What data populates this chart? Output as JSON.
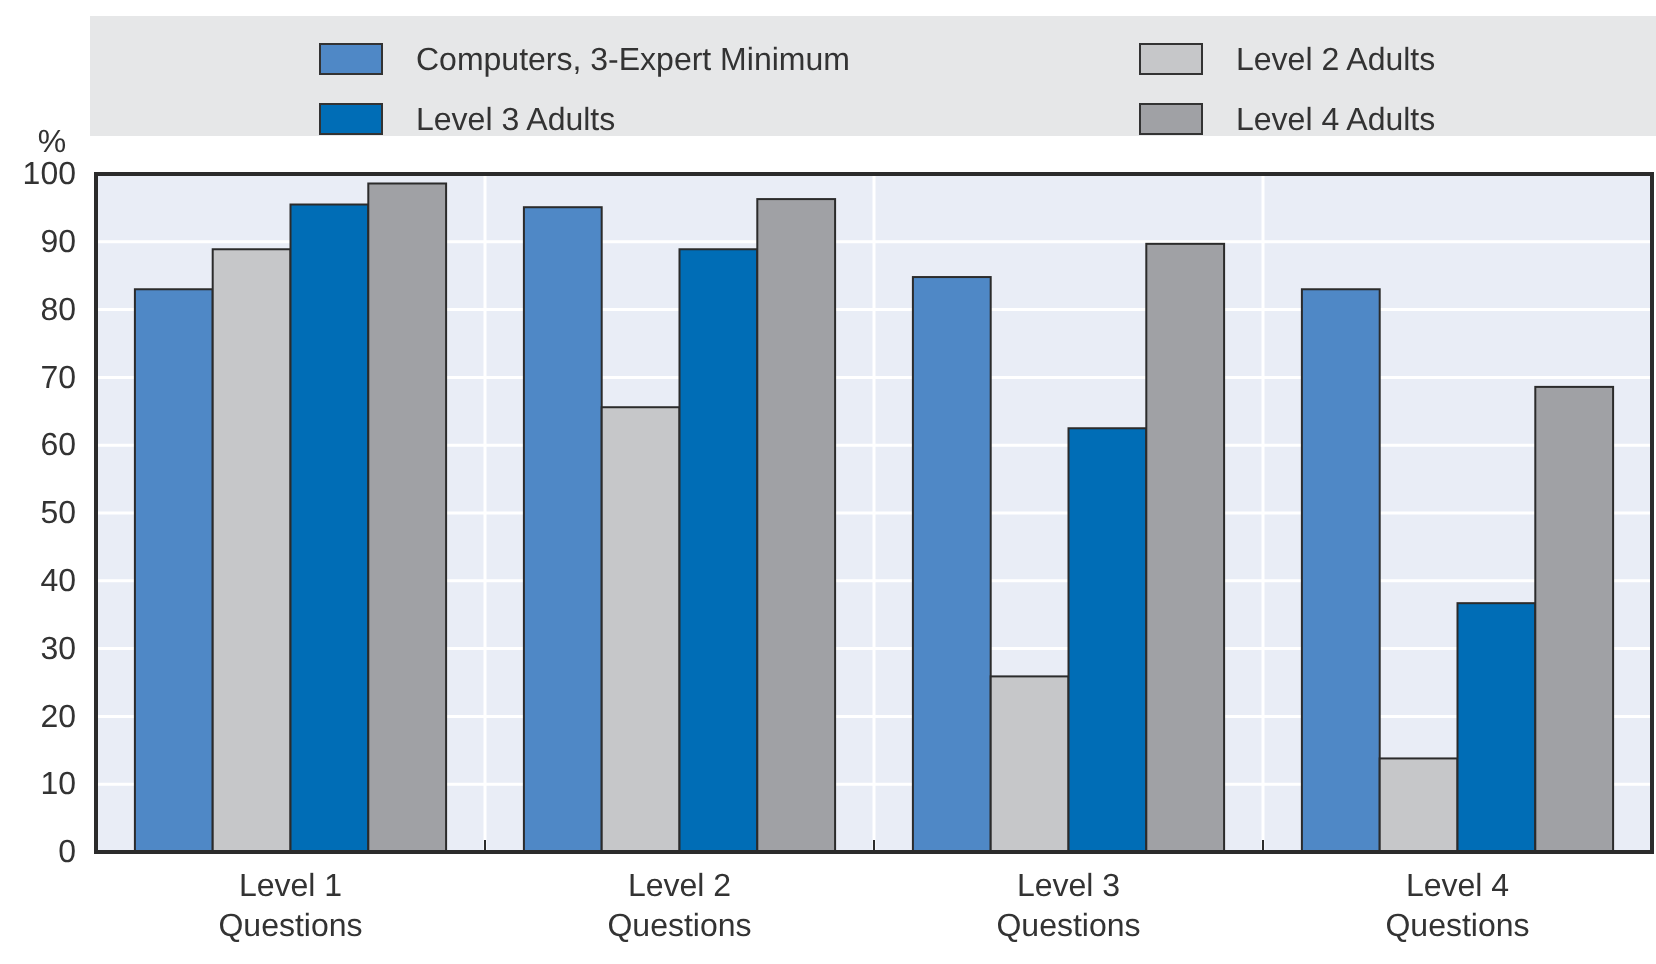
{
  "chart_data": {
    "type": "bar",
    "ylabel": "%",
    "categories": [
      "Level 1\nQuestions",
      "Level 2\nQuestions",
      "Level 3\nQuestions",
      "Level 4\nQuestions"
    ],
    "series": [
      {
        "name": "Computers, 3-Expert Minimum",
        "color": "#4f88c6",
        "values": [
          83,
          95.1,
          84.8,
          83
        ]
      },
      {
        "name": "Level 2 Adults",
        "color": "#c6c7c9",
        "values": [
          88.9,
          65.6,
          25.9,
          13.8
        ]
      },
      {
        "name": "Level 3 Adults",
        "color": "#006db6",
        "values": [
          95.5,
          88.9,
          62.5,
          36.7
        ]
      },
      {
        "name": "Level 4 Adults",
        "color": "#a0a1a5",
        "values": [
          98.6,
          96.3,
          89.7,
          68.6
        ]
      }
    ],
    "ylim": [
      0,
      100
    ],
    "yticks": [
      0,
      10,
      20,
      30,
      40,
      50,
      60,
      70,
      80,
      90,
      100
    ],
    "grid": true,
    "legend": "top"
  }
}
